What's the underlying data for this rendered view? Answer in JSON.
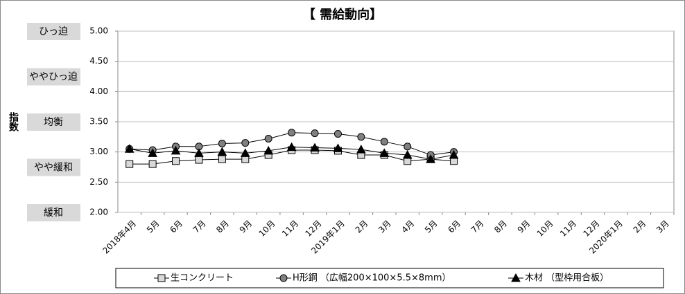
{
  "chart_data": {
    "type": "line",
    "title": "【 需給動向】",
    "y_label": "指数",
    "categories": [
      "2018年4月",
      "5月",
      "6月",
      "7月",
      "8月",
      "9月",
      "10月",
      "11月",
      "12月",
      "2019年1月",
      "2月",
      "3月",
      "4月",
      "5月",
      "6月",
      "7月",
      "8月",
      "9月",
      "10月",
      "11月",
      "12月",
      "2020年1月",
      "2月",
      "3月"
    ],
    "series": [
      {
        "name": "生コンクリート",
        "color": "#000000",
        "marker": "square",
        "marker_color": "#d9d9d9",
        "values": [
          2.8,
          2.8,
          2.85,
          2.87,
          2.88,
          2.88,
          2.95,
          3.03,
          3.03,
          3.02,
          2.95,
          2.95,
          2.85,
          2.88,
          2.85,
          null,
          null,
          null,
          null,
          null,
          null,
          null,
          null,
          null
        ]
      },
      {
        "name": "H形鋼 （広幅200×100×5.5×8mm）",
        "color": "#000000",
        "marker": "circle",
        "marker_color": "#808080",
        "values": [
          3.05,
          3.03,
          3.09,
          3.09,
          3.14,
          3.15,
          3.22,
          3.32,
          3.31,
          3.3,
          3.25,
          3.17,
          3.09,
          2.95,
          3.0,
          null,
          null,
          null,
          null,
          null,
          null,
          null,
          null,
          null
        ]
      },
      {
        "name": "木材 （型枠用合板）",
        "color": "#000000",
        "marker": "triangle",
        "marker_color": "#000000",
        "values": [
          3.05,
          2.98,
          3.02,
          2.98,
          3.0,
          2.98,
          3.02,
          3.08,
          3.07,
          3.06,
          3.04,
          2.98,
          2.95,
          2.88,
          2.95,
          null,
          null,
          null,
          null,
          null,
          null,
          null,
          null,
          null
        ]
      }
    ],
    "ylim": [
      2,
      5
    ],
    "yticks": [
      {
        "value": 2,
        "label": "2.00"
      },
      {
        "value": 2.5,
        "label": "2.50"
      },
      {
        "value": 3,
        "label": "3.00"
      },
      {
        "value": 3.5,
        "label": "3.50"
      },
      {
        "value": 4,
        "label": "4.00"
      },
      {
        "value": 4.5,
        "label": "4.50"
      },
      {
        "value": 5,
        "label": "5.00"
      }
    ],
    "grid": true,
    "level_labels": [
      {
        "value": 5,
        "label": "ひっ迫"
      },
      {
        "value": 4.25,
        "label": "ややひっ迫"
      },
      {
        "value": 3.5,
        "label": "均衡"
      },
      {
        "value": 2.75,
        "label": "やや緩和"
      },
      {
        "value": 2,
        "label": "緩和"
      }
    ],
    "legend": "bottom"
  }
}
